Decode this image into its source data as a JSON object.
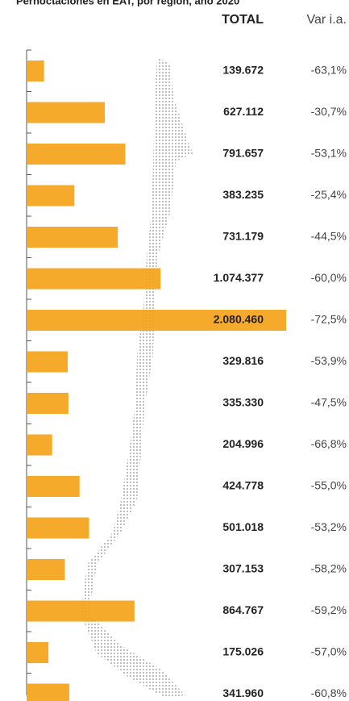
{
  "chart_data": {
    "type": "bar",
    "orientation": "horizontal",
    "title": "Pernoctaciones en EAT, por región, año 2020",
    "series": [
      {
        "name": "TOTAL",
        "color": "#f5a31a",
        "values": [
          139672,
          627112,
          791657,
          383235,
          731179,
          1074377,
          2080460,
          329816,
          335330,
          204996,
          424778,
          501018,
          307153,
          864767,
          175026,
          341960
        ],
        "value_labels": [
          "139.672",
          "627.112",
          "791.657",
          "383.235",
          "731.179",
          "1.074.377",
          "2.080.460",
          "329.816",
          "335.330",
          "204.996",
          "424.778",
          "501.018",
          "307.153",
          "864.767",
          "175.026",
          "341.960"
        ]
      },
      {
        "name": "Var i.a.",
        "values": [
          -63.1,
          -30.7,
          -53.1,
          -25.4,
          -44.5,
          -60.0,
          -72.5,
          -53.9,
          -47.5,
          -66.8,
          -55.0,
          -53.2,
          -58.2,
          -59.2,
          -57.0,
          -60.8
        ],
        "value_labels": [
          "-63,1%",
          "-30,7%",
          "-53,1%",
          "-25,4%",
          "-44,5%",
          "-60,0%",
          "-72,5%",
          "-53,9%",
          "-47,5%",
          "-66,8%",
          "-55,0%",
          "-53,2%",
          "-58,2%",
          "-59,2%",
          "-57,0%",
          "-60,8%"
        ]
      }
    ]
  }
}
